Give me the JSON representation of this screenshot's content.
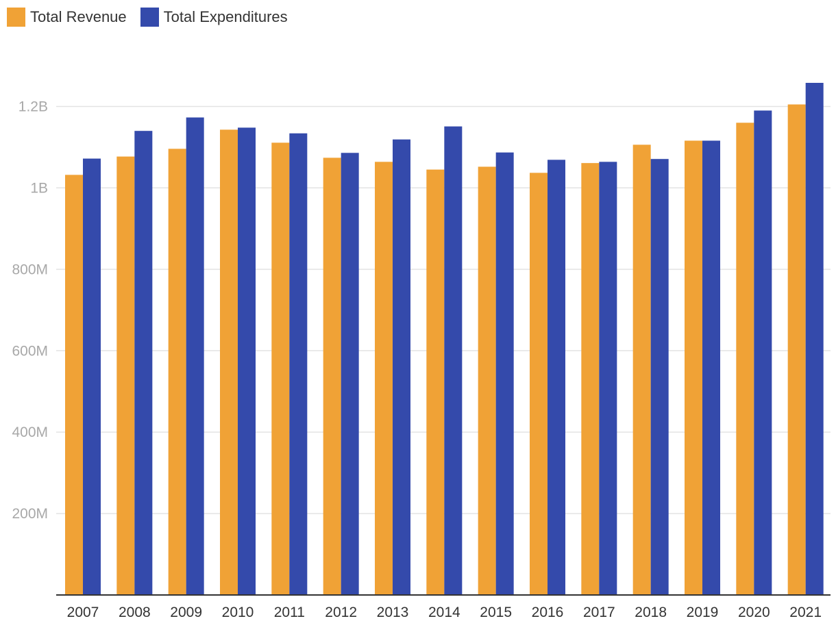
{
  "colors": {
    "revenue": "#f0a236",
    "expenditures": "#344aab",
    "grid": "#e3e3e3",
    "axis": "#333333"
  },
  "legend": {
    "position": "top-left",
    "items": [
      {
        "label": "Total Revenue",
        "color": "#f0a236"
      },
      {
        "label": "Total Expenditures",
        "color": "#344aab"
      }
    ]
  },
  "chart_data": {
    "type": "bar",
    "title": "",
    "xlabel": "",
    "ylabel": "",
    "categories": [
      "2007",
      "2008",
      "2009",
      "2010",
      "2011",
      "2012",
      "2013",
      "2014",
      "2015",
      "2016",
      "2017",
      "2018",
      "2019",
      "2020",
      "2021"
    ],
    "series": [
      {
        "name": "Total Revenue",
        "color": "#f0a236",
        "values": [
          1032000000,
          1077000000,
          1096000000,
          1143000000,
          1111000000,
          1074000000,
          1064000000,
          1045000000,
          1052000000,
          1037000000,
          1061000000,
          1106000000,
          1116000000,
          1160000000,
          1205000000
        ]
      },
      {
        "name": "Total Expenditures",
        "color": "#344aab",
        "values": [
          1072000000,
          1140000000,
          1173000000,
          1148000000,
          1134000000,
          1086000000,
          1119000000,
          1151000000,
          1087000000,
          1069000000,
          1064000000,
          1071000000,
          1116000000,
          1190000000,
          1258000000
        ]
      }
    ],
    "y_ticks": [
      {
        "value": 200000000,
        "label": "200M"
      },
      {
        "value": 400000000,
        "label": "400M"
      },
      {
        "value": 600000000,
        "label": "600M"
      },
      {
        "value": 800000000,
        "label": "800M"
      },
      {
        "value": 1000000000,
        "label": "1B"
      },
      {
        "value": 1200000000,
        "label": "1.2B"
      }
    ],
    "ylim": [
      0,
      1200000000
    ],
    "grid": true
  }
}
